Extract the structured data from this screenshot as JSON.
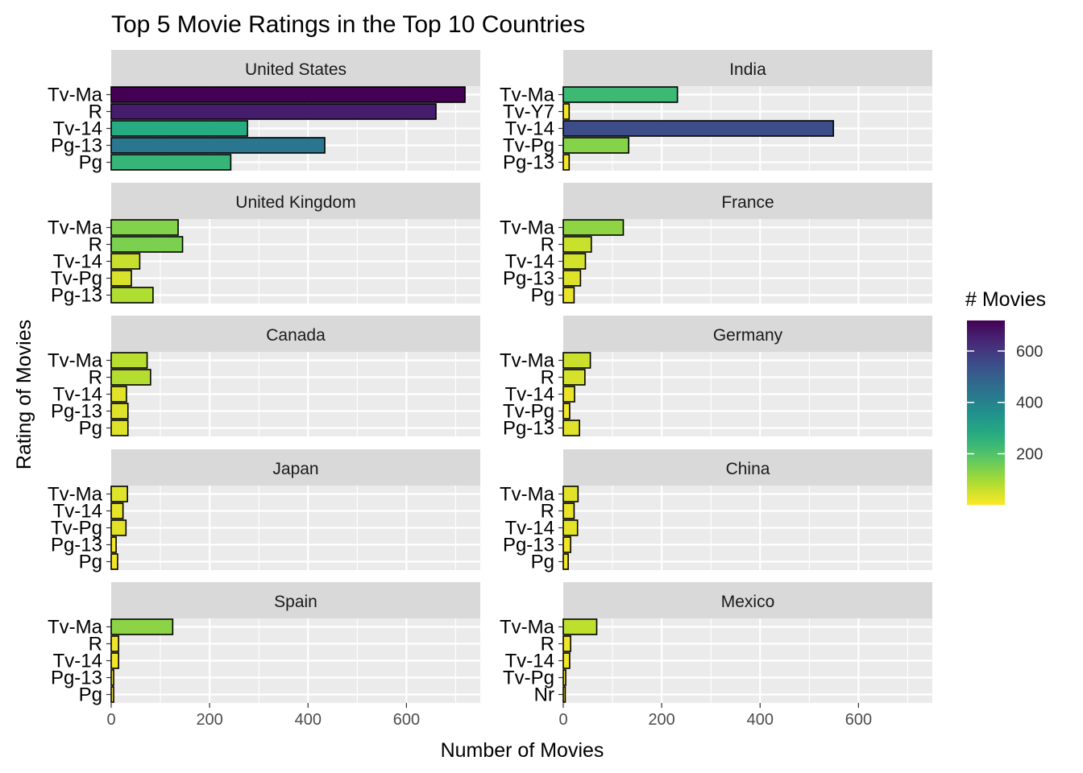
{
  "chart_data": {
    "type": "bar",
    "orientation": "horizontal",
    "title": "Top 5 Movie Ratings in the Top 10 Countries",
    "xlabel": "Number of Movies",
    "ylabel": "Rating of Movies",
    "xlim": [
      0,
      750
    ],
    "x_ticks": [
      0,
      200,
      400,
      600
    ],
    "grid": true,
    "legend": {
      "title": "# Movies",
      "type": "colorbar",
      "palette": "viridis",
      "range": [
        1,
        719
      ],
      "ticks": [
        200,
        400,
        600
      ],
      "placement": "right"
    },
    "panels": [
      {
        "country": "United States",
        "categories": [
          "Tv-Ma",
          "R",
          "Tv-14",
          "Pg-13",
          "Pg"
        ],
        "values": [
          719,
          660,
          277,
          434,
          243
        ]
      },
      {
        "country": "India",
        "categories": [
          "Tv-Ma",
          "Tv-Y7",
          "Tv-14",
          "Tv-Pg",
          "Pg-13"
        ],
        "values": [
          232,
          12,
          549,
          133,
          12
        ]
      },
      {
        "country": "United Kingdom",
        "categories": [
          "Tv-Ma",
          "R",
          "Tv-14",
          "Tv-Pg",
          "Pg-13"
        ],
        "values": [
          136,
          145,
          58,
          41,
          85
        ]
      },
      {
        "country": "France",
        "categories": [
          "Tv-Ma",
          "R",
          "Tv-14",
          "Pg-13",
          "Pg"
        ],
        "values": [
          122,
          57,
          45,
          35,
          22
        ]
      },
      {
        "country": "Canada",
        "categories": [
          "Tv-Ma",
          "R",
          "Tv-14",
          "Pg-13",
          "Pg"
        ],
        "values": [
          73,
          80,
          31,
          34,
          34
        ]
      },
      {
        "country": "Germany",
        "categories": [
          "Tv-Ma",
          "R",
          "Tv-14",
          "Tv-Pg",
          "Pg-13"
        ],
        "values": [
          55,
          44,
          23,
          13,
          33
        ]
      },
      {
        "country": "Japan",
        "categories": [
          "Tv-Ma",
          "Tv-14",
          "Tv-Pg",
          "Pg-13",
          "Pg"
        ],
        "values": [
          33,
          24,
          30,
          10,
          13
        ]
      },
      {
        "country": "China",
        "categories": [
          "Tv-Ma",
          "R",
          "Tv-14",
          "Pg-13",
          "Pg"
        ],
        "values": [
          30,
          22,
          29,
          15,
          10
        ]
      },
      {
        "country": "Spain",
        "categories": [
          "Tv-Ma",
          "R",
          "Tv-14",
          "Pg-13",
          "Pg"
        ],
        "values": [
          125,
          15,
          15,
          5,
          5
        ]
      },
      {
        "country": "Mexico",
        "categories": [
          "Tv-Ma",
          "R",
          "Tv-14",
          "Tv-Pg",
          "Nr"
        ],
        "values": [
          68,
          15,
          13,
          5,
          4
        ]
      }
    ]
  }
}
